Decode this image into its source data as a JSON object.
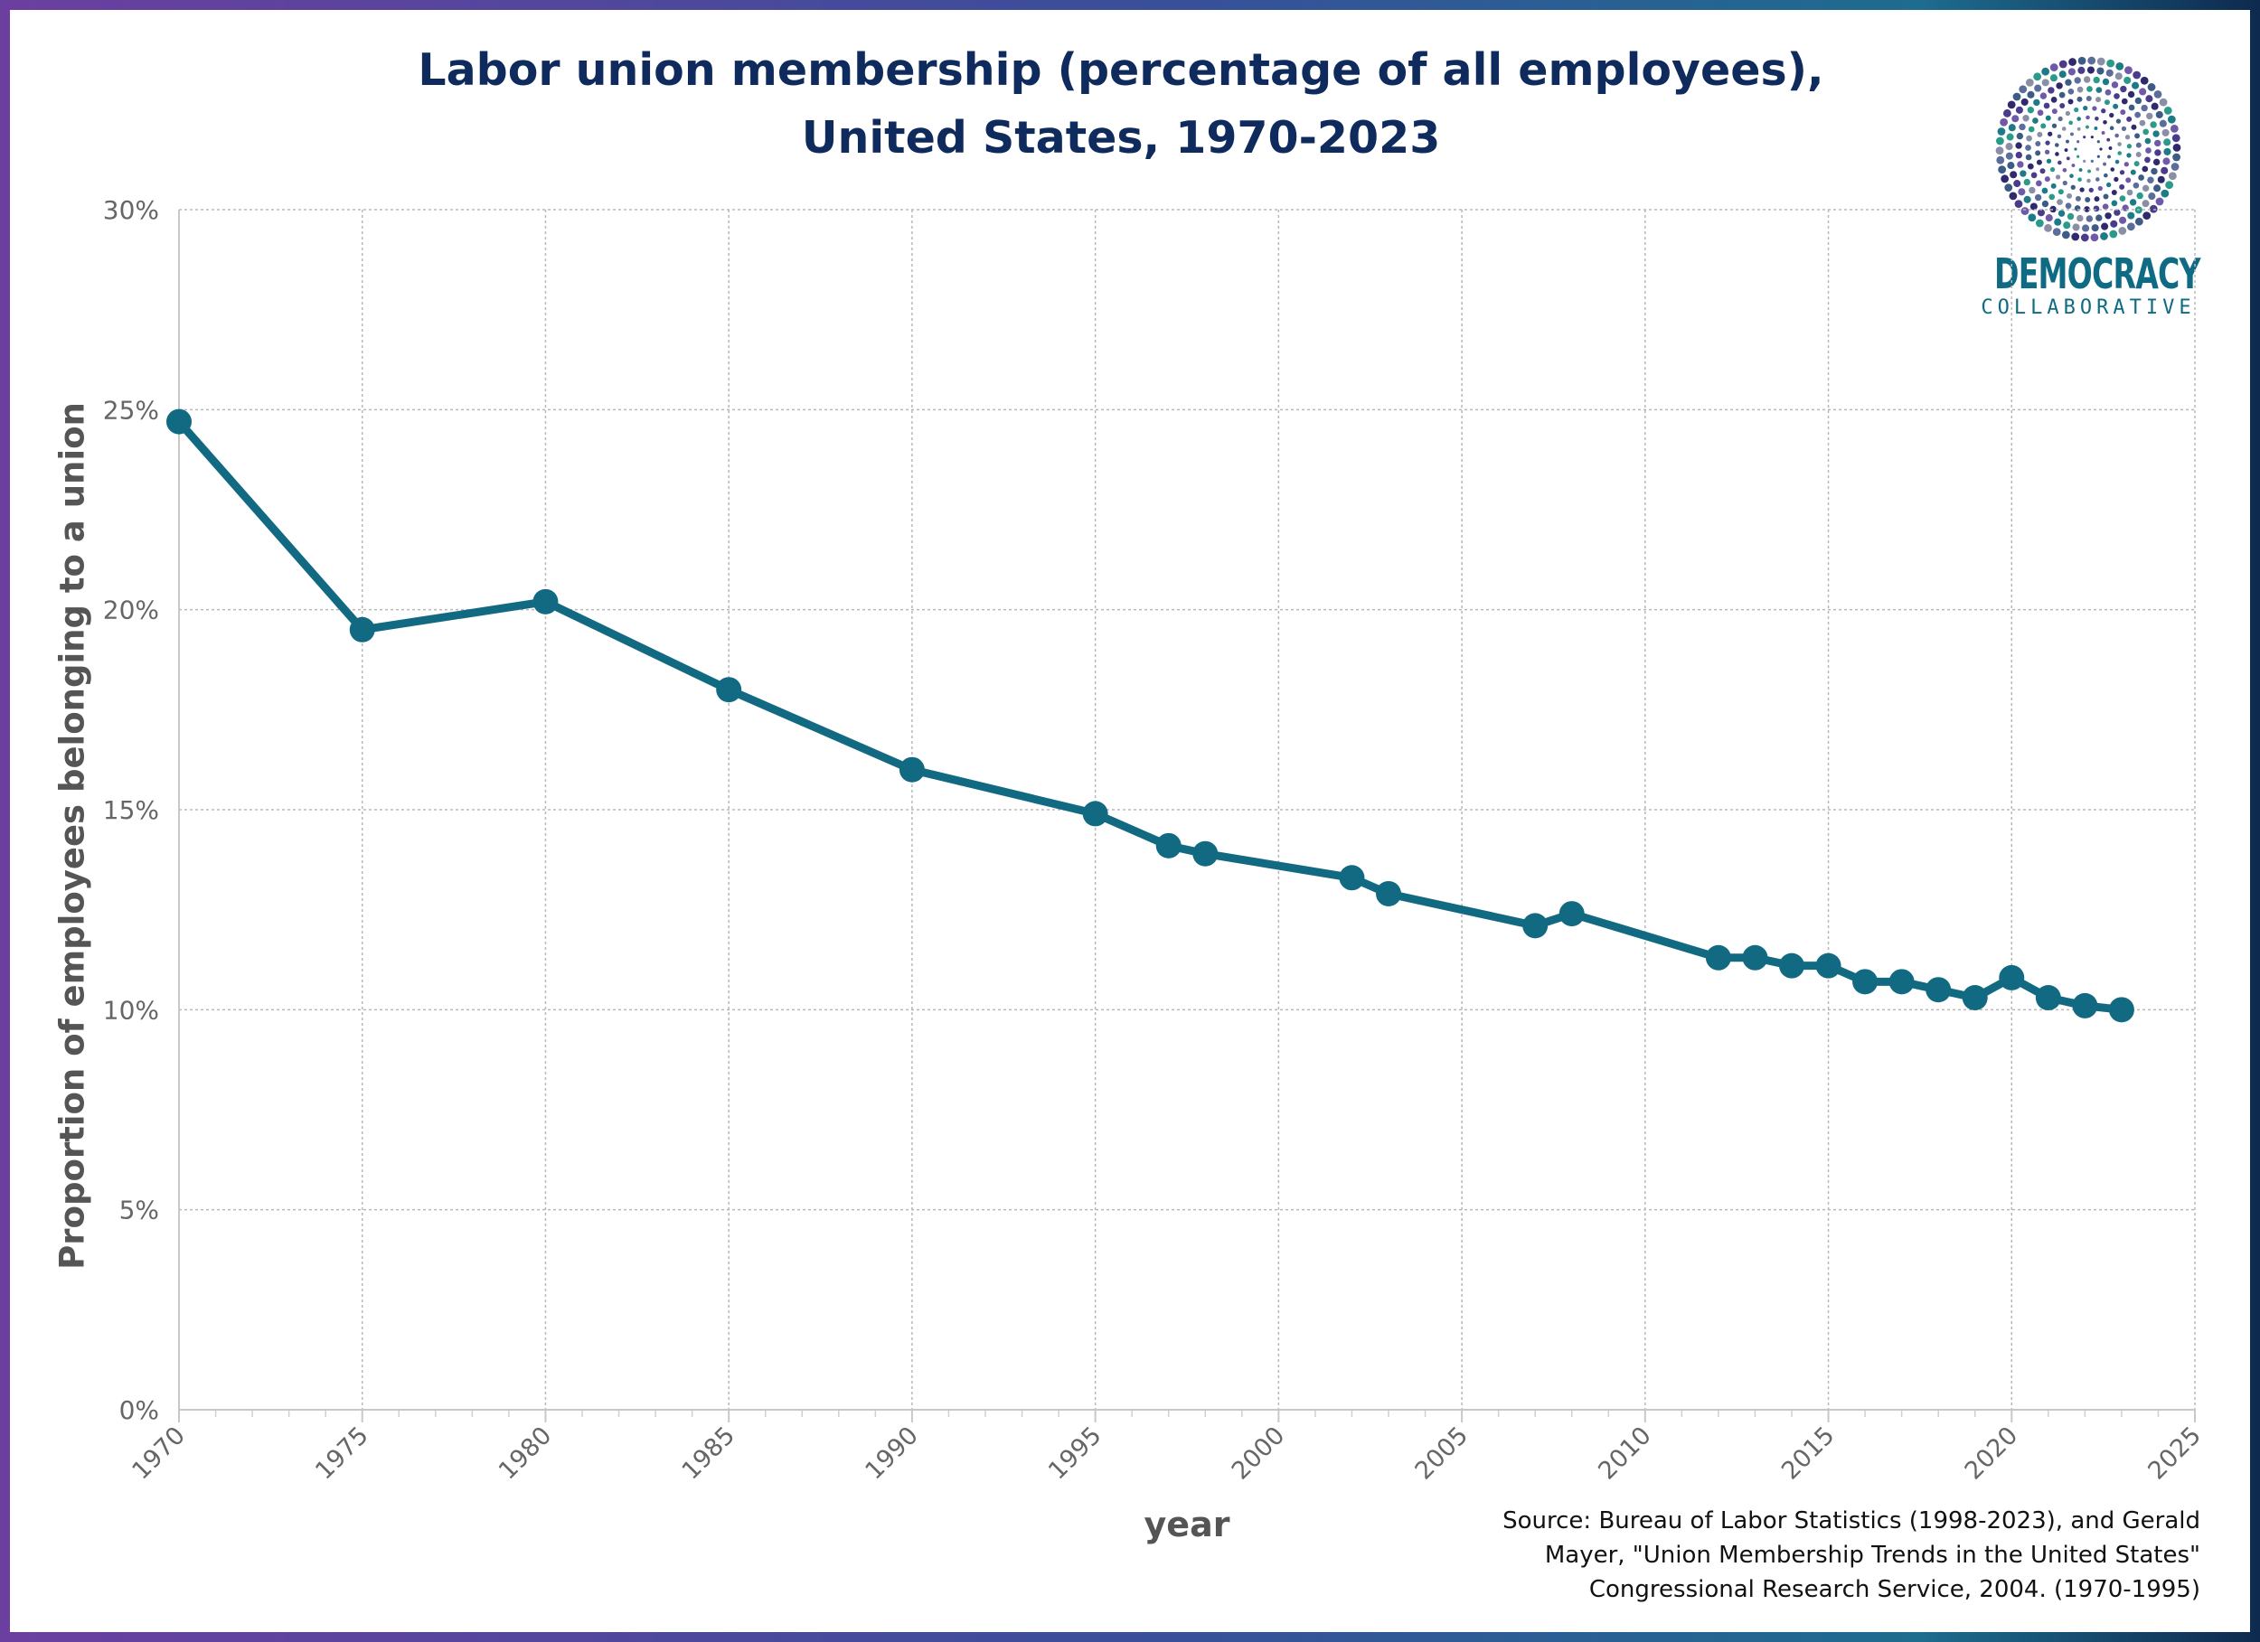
{
  "title_line1": "Labor union membership (percentage of all employees),",
  "title_line2": "United States, 1970-2023",
  "logo": {
    "word1": "DEMOCRACY",
    "word2": "COLLABORATIVE",
    "color": "#0f6b84"
  },
  "source_lines": [
    "Source: Bureau of Labor Statistics (1998-2023), and Gerald",
    "Mayer, \"Union Membership Trends in the United States\"",
    "Congressional Research Service, 2004. (1970-1995)"
  ],
  "chart_data": {
    "type": "line",
    "title": "Labor union membership (percentage of all employees), United States, 1970-2023",
    "xlabel": "year",
    "ylabel": "Proportion of employees belonging to a union",
    "xlim": [
      1970,
      2025
    ],
    "ylim": [
      0,
      30
    ],
    "xticks": [
      "1970",
      "1975",
      "1980",
      "1985",
      "1990",
      "1995",
      "2000",
      "2005",
      "2010",
      "2015",
      "2020",
      "2025"
    ],
    "yticks": [
      "0%",
      "5%",
      "10%",
      "15%",
      "20%",
      "25%",
      "30%"
    ],
    "grid": true,
    "line_color": "#126a82",
    "series": [
      {
        "x": [
          1970,
          1975,
          1980,
          1985,
          1990,
          1995,
          1997,
          1998,
          2002,
          2003,
          2007,
          2008,
          2012,
          2013,
          2014,
          2015,
          2016,
          2017,
          2018,
          2019,
          2020,
          2021,
          2022,
          2023
        ],
        "y": [
          24.7,
          19.5,
          20.2,
          18.0,
          16.0,
          14.9,
          14.1,
          13.9,
          13.3,
          12.9,
          12.1,
          12.4,
          11.3,
          11.3,
          11.1,
          11.1,
          10.7,
          10.7,
          10.5,
          10.3,
          10.8,
          10.3,
          10.1,
          10.0
        ]
      }
    ]
  }
}
